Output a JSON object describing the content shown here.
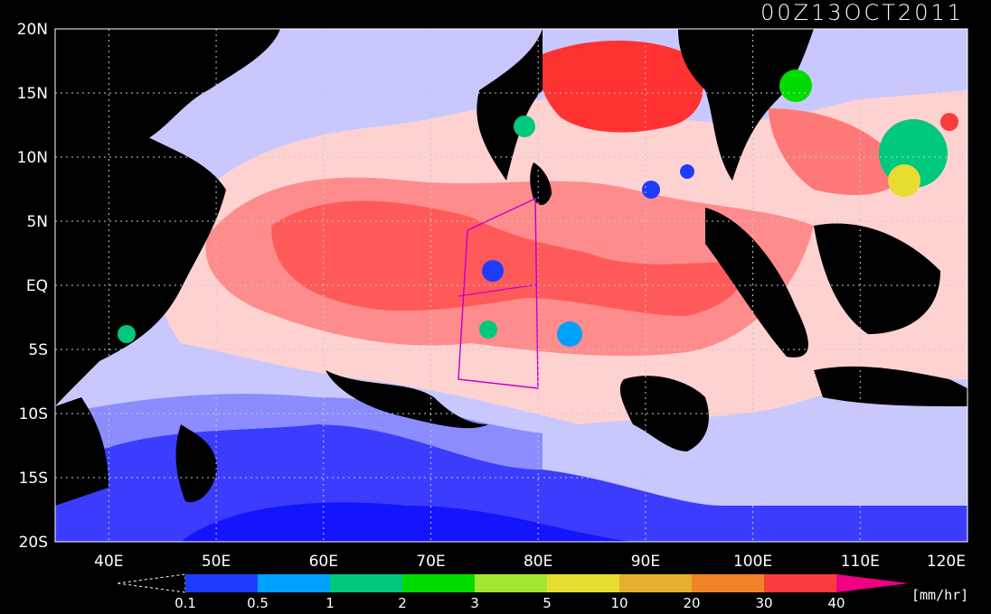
{
  "map": {
    "timestamp": "00Z13OCT2011",
    "lat_labels": [
      "20N",
      "15N",
      "10N",
      "5N",
      "EQ",
      "5S",
      "10S",
      "15S",
      "20S"
    ],
    "lon_labels": [
      "40E",
      "50E",
      "60E",
      "70E",
      "80E",
      "90E",
      "100E",
      "110E",
      "120E"
    ],
    "lat_range": [
      -20,
      20
    ],
    "lon_range": [
      35,
      120
    ],
    "colorbar": {
      "unit": "[mm/hr]",
      "ticks": [
        "0.1",
        "0.5",
        "1",
        "2",
        "3",
        "5",
        "10",
        "20",
        "30",
        "40"
      ],
      "colors": [
        "#1e3cff",
        "#00a0ff",
        "#00c87d",
        "#00dc00",
        "#a0e632",
        "#e6dc32",
        "#e6af2d",
        "#f08228",
        "#fa3c3c",
        "#f00082"
      ]
    },
    "background_colors": {
      "land": "#000000",
      "ocean_light": "#d6d6ff",
      "ocean_mid": "#8c8cff",
      "ocean_deep": "#1e1eff"
    }
  }
}
